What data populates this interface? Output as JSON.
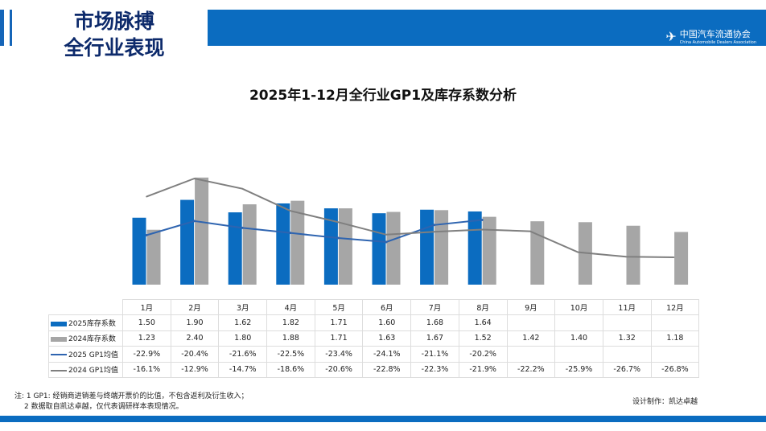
{
  "header": {
    "title_line1": "市场脉搏",
    "title_line2": "全行业表现",
    "logo_name": "中国汽车流通协会",
    "logo_sub": "China Automobile Dealers Association"
  },
  "chart_data": {
    "type": "bar+line",
    "title": "2025年1-12月全行业GP1及库存系数分析",
    "categories": [
      "1月",
      "2月",
      "3月",
      "4月",
      "5月",
      "6月",
      "7月",
      "8月",
      "9月",
      "10月",
      "11月",
      "12月"
    ],
    "series": [
      {
        "name": "2025库存系数",
        "kind": "bar",
        "color": "#0b6cc0",
        "values": [
          1.5,
          1.9,
          1.62,
          1.82,
          1.71,
          1.6,
          1.68,
          1.64,
          null,
          null,
          null,
          null
        ],
        "labels": [
          "1.50",
          "1.90",
          "1.62",
          "1.82",
          "1.71",
          "1.60",
          "1.68",
          "1.64",
          "",
          "",
          "",
          ""
        ]
      },
      {
        "name": "2024库存系数",
        "kind": "bar",
        "color": "#a6a6a6",
        "values": [
          1.23,
          2.4,
          1.8,
          1.88,
          1.71,
          1.63,
          1.67,
          1.52,
          1.42,
          1.4,
          1.32,
          1.18
        ],
        "labels": [
          "1.23",
          "2.40",
          "1.80",
          "1.88",
          "1.71",
          "1.63",
          "1.67",
          "1.52",
          "1.42",
          "1.40",
          "1.32",
          "1.18"
        ]
      },
      {
        "name": "2025 GP1均值",
        "kind": "line",
        "color": "#2e64b0",
        "values": [
          -22.9,
          -20.4,
          -21.6,
          -22.5,
          -23.4,
          -24.1,
          -21.1,
          -20.2,
          null,
          null,
          null,
          null
        ],
        "labels": [
          "-22.9%",
          "-20.4%",
          "-21.6%",
          "-22.5%",
          "-23.4%",
          "-24.1%",
          "-21.1%",
          "-20.2%",
          "",
          "",
          "",
          ""
        ]
      },
      {
        "name": "2024 GP1均值",
        "kind": "line",
        "color": "#7f7f7f",
        "values": [
          -16.1,
          -12.9,
          -14.7,
          -18.6,
          -20.6,
          -22.8,
          -22.3,
          -21.9,
          -22.2,
          -25.9,
          -26.7,
          -26.8
        ],
        "labels": [
          "-16.1%",
          "-12.9%",
          "-14.7%",
          "-18.6%",
          "-20.6%",
          "-22.8%",
          "-22.3%",
          "-21.9%",
          "-22.2%",
          "-25.9%",
          "-26.7%",
          "-26.8%"
        ]
      }
    ],
    "legend": "data-table below chart"
  },
  "notes": {
    "line1": "注: 1 GP1: 经销商进销差与终端开票价的比值，不包含返利及衍生收入；",
    "line2": "2 数据取自凯达卓越，仅代表调研样本表现情况。",
    "design": "设计制作：凯达卓越"
  }
}
